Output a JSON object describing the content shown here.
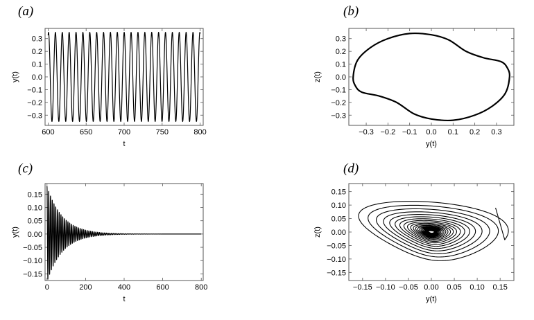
{
  "panels": {
    "a": {
      "label": "(a)"
    },
    "b": {
      "label": "(b)"
    },
    "c": {
      "label": "(c)"
    },
    "d": {
      "label": "(d)"
    }
  },
  "chart_data": [
    {
      "id": "a",
      "type": "line",
      "xlabel": "t",
      "ylabel": "y(t)",
      "xlim": [
        596,
        804
      ],
      "ylim": [
        -0.38,
        0.38
      ],
      "xticks": [
        600,
        650,
        700,
        750,
        800
      ],
      "yticks": [
        -0.3,
        -0.2,
        -0.1,
        0.0,
        0.1,
        0.2,
        0.3
      ],
      "ytick_labels": [
        "-0.3",
        "-0.2",
        "-0.1",
        "0.0",
        "0.1",
        "0.2",
        "0.3"
      ],
      "series": [
        {
          "kind": "sinusoid",
          "t_start": 600,
          "t_end": 800,
          "amplitude": 0.35,
          "period": 9.05,
          "phase": 1.2,
          "color": "#000000"
        }
      ]
    },
    {
      "id": "b",
      "type": "line",
      "xlabel": "y(t)",
      "ylabel": "z(t)",
      "xlim": [
        -0.38,
        0.38
      ],
      "ylim": [
        -0.38,
        0.38
      ],
      "xticks": [
        -0.3,
        -0.2,
        -0.1,
        0.0,
        0.1,
        0.2,
        0.3
      ],
      "xtick_labels": [
        "-0.3",
        "-0.2",
        "-0.1",
        "0.0",
        "0.1",
        "0.2",
        "0.3"
      ],
      "yticks": [
        -0.3,
        -0.2,
        -0.1,
        0.0,
        0.1,
        0.2,
        0.3
      ],
      "ytick_labels": [
        "-0.3",
        "-0.2",
        "-0.1",
        "0.0",
        "0.1",
        "0.2",
        "0.3"
      ],
      "series": [
        {
          "kind": "closed_orbit",
          "color": "#000000",
          "points": [
            [
              -0.36,
              0.0
            ],
            [
              -0.34,
              0.13
            ],
            [
              -0.28,
              0.23
            ],
            [
              -0.2,
              0.3
            ],
            [
              -0.1,
              0.34
            ],
            [
              0.0,
              0.33
            ],
            [
              0.08,
              0.29
            ],
            [
              0.16,
              0.2
            ],
            [
              0.24,
              0.15
            ],
            [
              0.32,
              0.12
            ],
            [
              0.35,
              0.07
            ],
            [
              0.36,
              0.0
            ],
            [
              0.34,
              -0.13
            ],
            [
              0.28,
              -0.23
            ],
            [
              0.2,
              -0.3
            ],
            [
              0.1,
              -0.34
            ],
            [
              0.0,
              -0.33
            ],
            [
              -0.08,
              -0.29
            ],
            [
              -0.16,
              -0.2
            ],
            [
              -0.24,
              -0.15
            ],
            [
              -0.32,
              -0.12
            ],
            [
              -0.35,
              -0.07
            ]
          ]
        }
      ]
    },
    {
      "id": "c",
      "type": "line",
      "xlabel": "t",
      "ylabel": "y(t)",
      "xlim": [
        -10,
        810
      ],
      "ylim": [
        -0.175,
        0.19
      ],
      "xticks": [
        0,
        200,
        400,
        600,
        800
      ],
      "yticks": [
        -0.15,
        -0.1,
        -0.05,
        0.0,
        0.05,
        0.1,
        0.15
      ],
      "ytick_labels": [
        "-0.15",
        "-0.10",
        "-0.05",
        "0.00",
        "0.05",
        "0.10",
        "0.15"
      ],
      "series": [
        {
          "kind": "damped_oscillation",
          "t_start": 0,
          "t_end": 800,
          "amplitude0": 0.18,
          "decay_time": 80,
          "period": 9.05,
          "color": "#000000"
        }
      ]
    },
    {
      "id": "d",
      "type": "line",
      "xlabel": "y(t)",
      "ylabel": "z(t)",
      "xlim": [
        -0.18,
        0.18
      ],
      "ylim": [
        -0.18,
        0.18
      ],
      "xticks": [
        -0.15,
        -0.1,
        -0.05,
        0.0,
        0.05,
        0.1,
        0.15
      ],
      "xtick_labels": [
        "-0.15",
        "-0.10",
        "-0.05",
        "0.00",
        "0.05",
        "0.10",
        "0.15"
      ],
      "yticks": [
        -0.15,
        -0.1,
        -0.05,
        0.0,
        0.05,
        0.1,
        0.15
      ],
      "ytick_labels": [
        "-0.15",
        "-0.10",
        "-0.05",
        "0.00",
        "0.05",
        "0.10",
        "0.15"
      ],
      "series": [
        {
          "kind": "inward_spiral",
          "start_point": [
            0.14,
            0.09
          ],
          "r0": 0.16,
          "turns": 24,
          "decay_per_turn": 0.87,
          "color": "#000000"
        }
      ]
    }
  ]
}
